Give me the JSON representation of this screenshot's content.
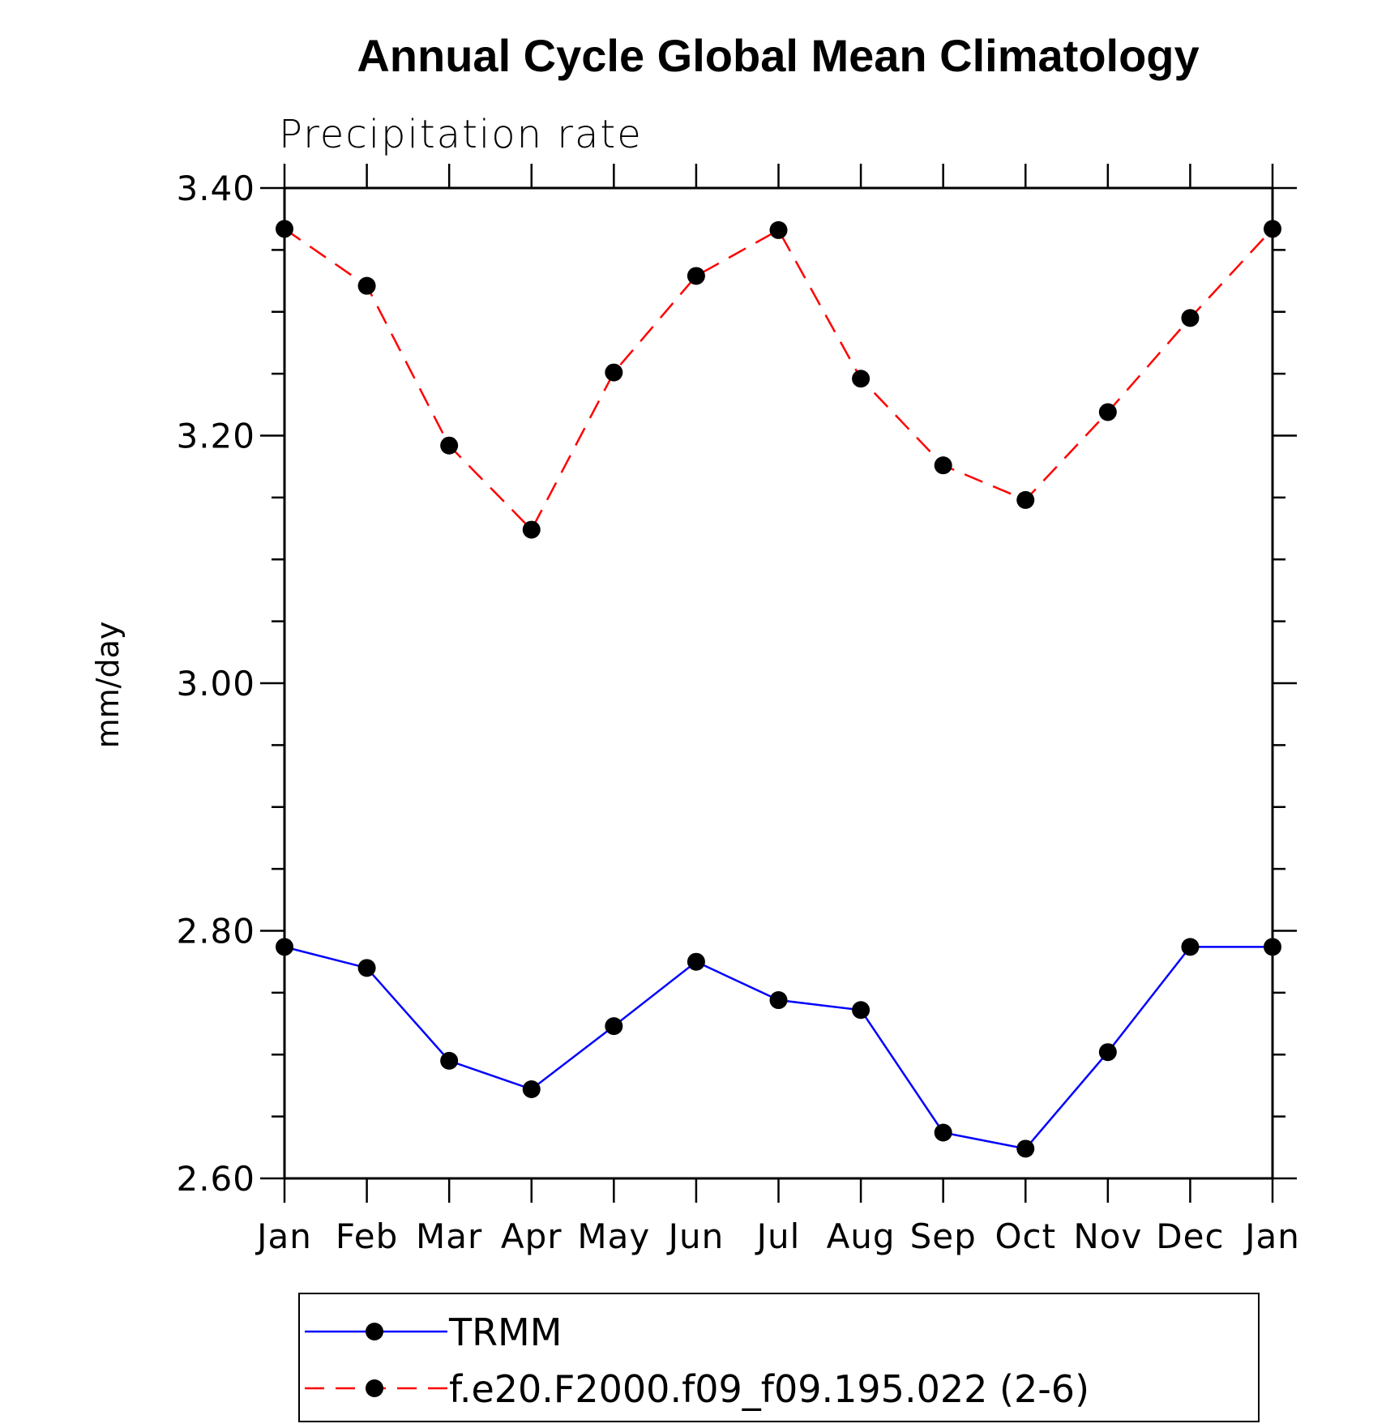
{
  "chart_data": {
    "type": "line",
    "title": "Annual Cycle Global Mean Climatology",
    "subtitle": "Precipitation rate",
    "xlabel": "",
    "ylabel": "mm/day",
    "categories": [
      "Jan",
      "Feb",
      "Mar",
      "Apr",
      "May",
      "Jun",
      "Jul",
      "Aug",
      "Sep",
      "Oct",
      "Nov",
      "Dec",
      "Jan"
    ],
    "ylim": [
      2.6,
      3.4
    ],
    "yticks": [
      "2.60",
      "2.80",
      "3.00",
      "3.20",
      "3.40"
    ],
    "grid": false,
    "legend_position": "bottom",
    "series": [
      {
        "name": "TRMM",
        "color": "#0000ff",
        "line_style": "solid",
        "marker": "filled-circle",
        "values": [
          2.787,
          2.77,
          2.695,
          2.672,
          2.723,
          2.775,
          2.744,
          2.736,
          2.637,
          2.624,
          2.702,
          2.787,
          2.787
        ]
      },
      {
        "name": "f.e20.F2000.f09_f09.195.022 (2-6)",
        "color": "#ff0000",
        "line_style": "dashed",
        "marker": "filled-circle",
        "values": [
          3.367,
          3.321,
          3.192,
          3.124,
          3.251,
          3.329,
          3.366,
          3.246,
          3.176,
          3.148,
          3.219,
          3.295,
          3.367
        ]
      }
    ]
  }
}
